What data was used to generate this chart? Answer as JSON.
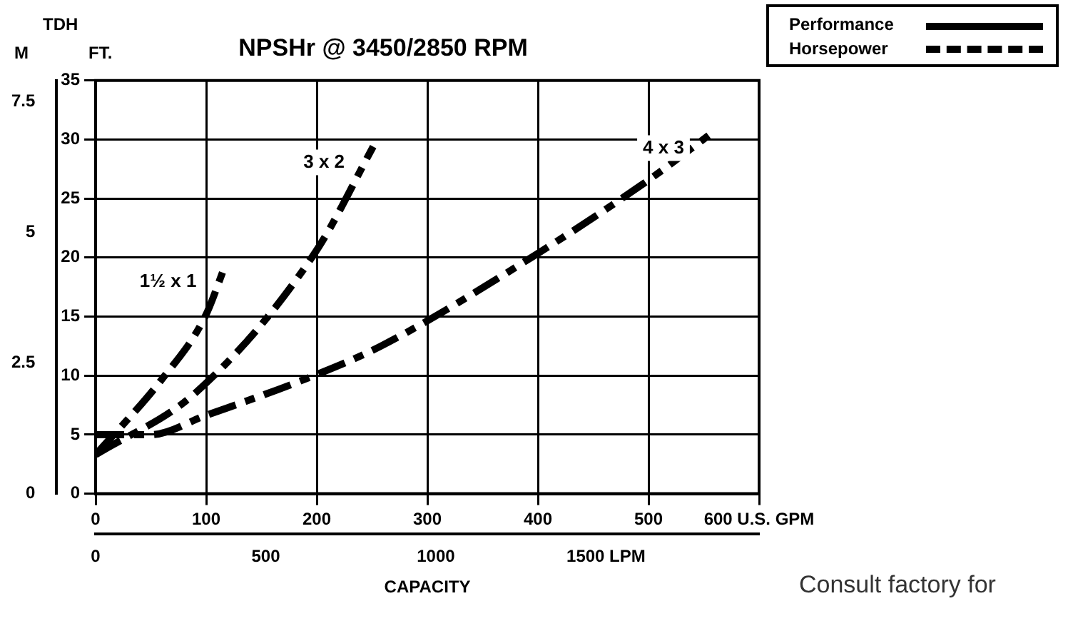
{
  "chart_data": {
    "type": "line",
    "title": "NPSHr @ 3450/2850 RPM",
    "xlabel": "CAPACITY",
    "ylabel": "FT.",
    "y2label": "M",
    "annotations": [
      "TDH",
      "Consult factory for",
      "Performance",
      "Horsepower"
    ],
    "series": [
      {
        "name": "1½ x 1",
        "color": "#000000",
        "x": [
          0,
          60,
          99,
          117
        ],
        "values": [
          3.3,
          9.7,
          15,
          19.3
        ]
      },
      {
        "name": "3 x 2",
        "color": "#000000",
        "x": [
          0,
          91,
          199,
          251
        ],
        "values": [
          3.3,
          8.6,
          20.5,
          29.4
        ]
      },
      {
        "name": "4 x 3",
        "color": "#000000",
        "x": [
          0,
          50,
          99,
          192,
          258,
          399,
          502,
          558
        ],
        "values": [
          5,
          5,
          6.6,
          9.8,
          12.5,
          20.3,
          26.7,
          30.6
        ]
      }
    ],
    "line_style": "dashed",
    "grid": true,
    "xlim": [
      0,
      600
    ],
    "xticks": [
      0,
      100,
      200,
      300,
      400,
      500,
      {
        "value": 600,
        "label": "600 U.S. GPM"
      }
    ],
    "ylim": [
      0,
      35
    ],
    "yticks": [
      0,
      5,
      10,
      15,
      20,
      25,
      30,
      35
    ],
    "y2lim": [
      0,
      7.9
    ],
    "y2ticks": [
      0,
      2.5,
      5,
      7.5
    ],
    "x2lim": [
      0,
      1950
    ],
    "x2ticks": [
      0,
      500,
      1000,
      {
        "value": 1500,
        "label": "1500 LPM"
      }
    ]
  }
}
